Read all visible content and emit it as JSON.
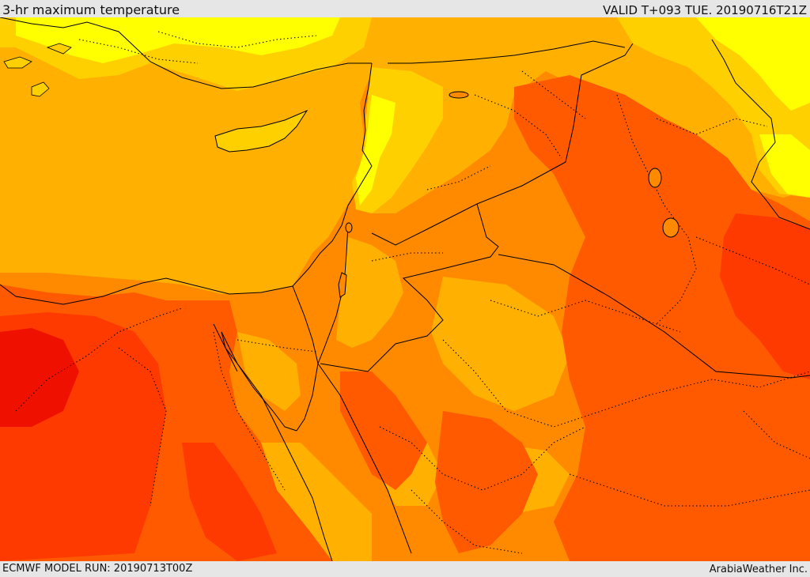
{
  "header": {
    "title": "3-hr maximum temperature",
    "valid": "VALID T+093 TUE. 20190716T21Z"
  },
  "footer": {
    "model_run": "ECMWF MODEL RUN: 20190713T00Z",
    "credit": "ArabiaWeather Inc."
  },
  "map": {
    "palette": {
      "yellow": "#ffff00",
      "gold": "#ffd000",
      "light_orange": "#ffb000",
      "orange": "#ff8a00",
      "dark_orange": "#ff5a00",
      "red_orange": "#ff3a00",
      "red": "#f01000"
    },
    "borders": {
      "country_color": "#000000",
      "province_color": "#000000",
      "province_style": "dotted"
    }
  }
}
